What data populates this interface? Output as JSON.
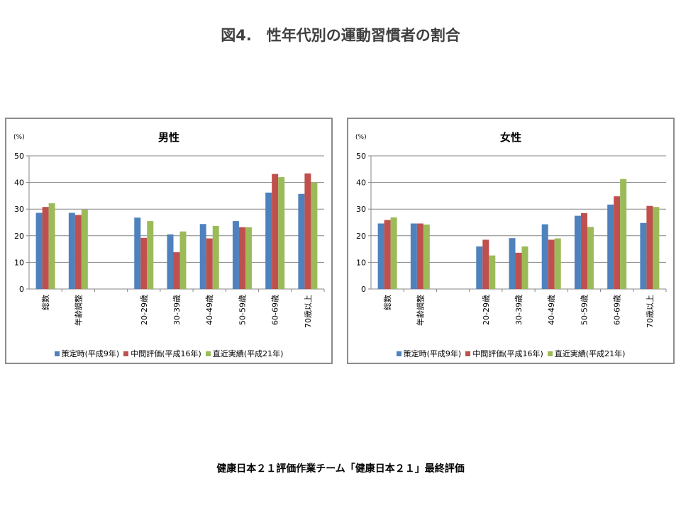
{
  "page": {
    "title": "図4.　性年代別の運動習慣者の割合",
    "footer": "健康日本２１評価作業チーム「健康日本２１」最終評価"
  },
  "series_colors": [
    "#4f81bd",
    "#c0504d",
    "#9bbb59"
  ],
  "chart_data": [
    {
      "type": "bar",
      "title": "男性",
      "ylabel": "(%)",
      "ylim": [
        0,
        50
      ],
      "yticks": [
        0,
        10,
        20,
        30,
        40,
        50
      ],
      "grid": true,
      "legend_position": "bottom",
      "categories": [
        "総数",
        "年齢調整",
        "",
        "20-29歳",
        "30-39歳",
        "40-49歳",
        "50-59歳",
        "60-69歳",
        "70歳以上"
      ],
      "series": [
        {
          "name": "策定時(平成9年)",
          "values": [
            28.6,
            28.6,
            null,
            26.8,
            20.5,
            24.4,
            25.5,
            36.2,
            35.7
          ]
        },
        {
          "name": "中間評価(平成16年)",
          "values": [
            30.8,
            27.8,
            null,
            19.2,
            13.8,
            19.0,
            23.2,
            43.2,
            43.4
          ]
        },
        {
          "name": "直近実績(平成21年)",
          "values": [
            32.2,
            29.8,
            null,
            25.5,
            21.6,
            23.7,
            23.2,
            42.0,
            40.0
          ]
        }
      ]
    },
    {
      "type": "bar",
      "title": "女性",
      "ylabel": "(%)",
      "ylim": [
        0,
        50
      ],
      "yticks": [
        0,
        10,
        20,
        30,
        40,
        50
      ],
      "grid": true,
      "legend_position": "bottom",
      "categories": [
        "総数",
        "年齢調整",
        "",
        "20-29歳",
        "30-39歳",
        "40-49歳",
        "50-59歳",
        "60-69歳",
        "70歳以上"
      ],
      "series": [
        {
          "name": "策定時(平成9年)",
          "values": [
            24.6,
            24.6,
            null,
            16.0,
            19.1,
            24.3,
            27.5,
            31.7,
            24.8
          ]
        },
        {
          "name": "中間評価(平成16年)",
          "values": [
            25.9,
            24.6,
            null,
            18.5,
            13.6,
            18.5,
            28.5,
            34.8,
            31.2
          ]
        },
        {
          "name": "直近実績(平成21年)",
          "values": [
            26.9,
            24.2,
            null,
            12.6,
            16.0,
            19.0,
            23.3,
            41.3,
            30.8
          ]
        }
      ]
    }
  ]
}
